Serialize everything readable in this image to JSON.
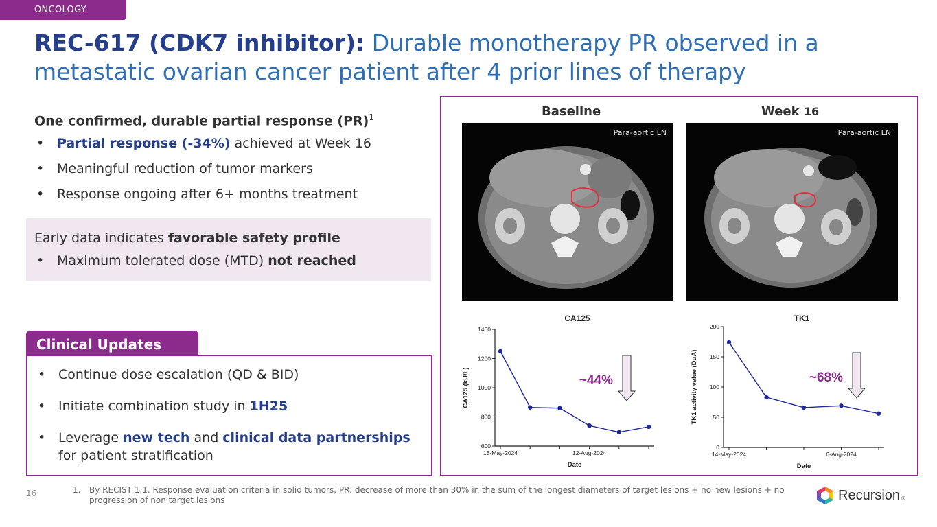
{
  "section_tag": "ONCOLOGY",
  "title": {
    "bold": "REC-617 (CDK7 inhibitor):",
    "rest1": " Durable monotherapy PR observed in a",
    "rest2": "metastatic ovarian cancer patient after 4 prior lines of therapy"
  },
  "response": {
    "heading": "One confirmed, durable partial response (PR)",
    "heading_sup": "1",
    "bullets": [
      {
        "bold": "Partial response (-34%)",
        "text": " achieved at Week 16"
      },
      {
        "text": "Meaningful reduction of tumor markers"
      },
      {
        "text": "Response ongoing after 6+ months treatment"
      }
    ]
  },
  "safety": {
    "intro": "Early data indicates ",
    "intro_bold": "favorable safety profile",
    "bullet_text": "Maximum tolerated dose (MTD) ",
    "bullet_bold": "not reached"
  },
  "clinical_updates": {
    "tab": "Clinical Updates",
    "item1": "Continue dose escalation (QD & BID)",
    "item2_text": "Initiate combination study in ",
    "item2_bold": "1H25",
    "item3_a": "Leverage ",
    "item3_b": "new tech",
    "item3_c": " and ",
    "item3_d": "clinical data partnerships",
    "item3_e": " for patient stratification"
  },
  "scans": {
    "baseline_label": "Baseline",
    "week_label": "Week",
    "week_num": "16",
    "ln_label_left": "Para-aortic LN",
    "ln_label_right": "Para-aortic LN"
  },
  "chart_data": [
    {
      "type": "line",
      "title": "CA125",
      "xlabel": "Date",
      "ylabel": "CA125 (kU/L)",
      "ylim": [
        600,
        1400
      ],
      "yticks": [
        600,
        800,
        1000,
        1200,
        1400
      ],
      "xtick_labels": [
        "13-May-2024",
        "12-Aug-2024"
      ],
      "values": [
        1250,
        865,
        860,
        740,
        695,
        732
      ],
      "annotation": "~44%",
      "color": "#1F2A9C"
    },
    {
      "type": "line",
      "title": "TK1",
      "xlabel": "Date",
      "ylabel": "TK1 activity value (DuA)",
      "ylim": [
        0,
        200
      ],
      "yticks": [
        0,
        50,
        100,
        150,
        200
      ],
      "xtick_labels": [
        "14-May-2024",
        "6-Aug-2024"
      ],
      "values": [
        174,
        83,
        66,
        69,
        56
      ],
      "annotation": "~68%",
      "color": "#1F2A9C"
    }
  ],
  "annotation_color": "#8B2C8C",
  "footnote": {
    "num": "1.",
    "text": "By RECIST 1.1. Response evaluation criteria in solid tumors, PR: decrease of more than 30% in the sum of the longest diameters of target lesions + no new lesions + no progression of non target lesions"
  },
  "page_number": "16",
  "logo_text": "Recursion",
  "logo_reg": "®"
}
